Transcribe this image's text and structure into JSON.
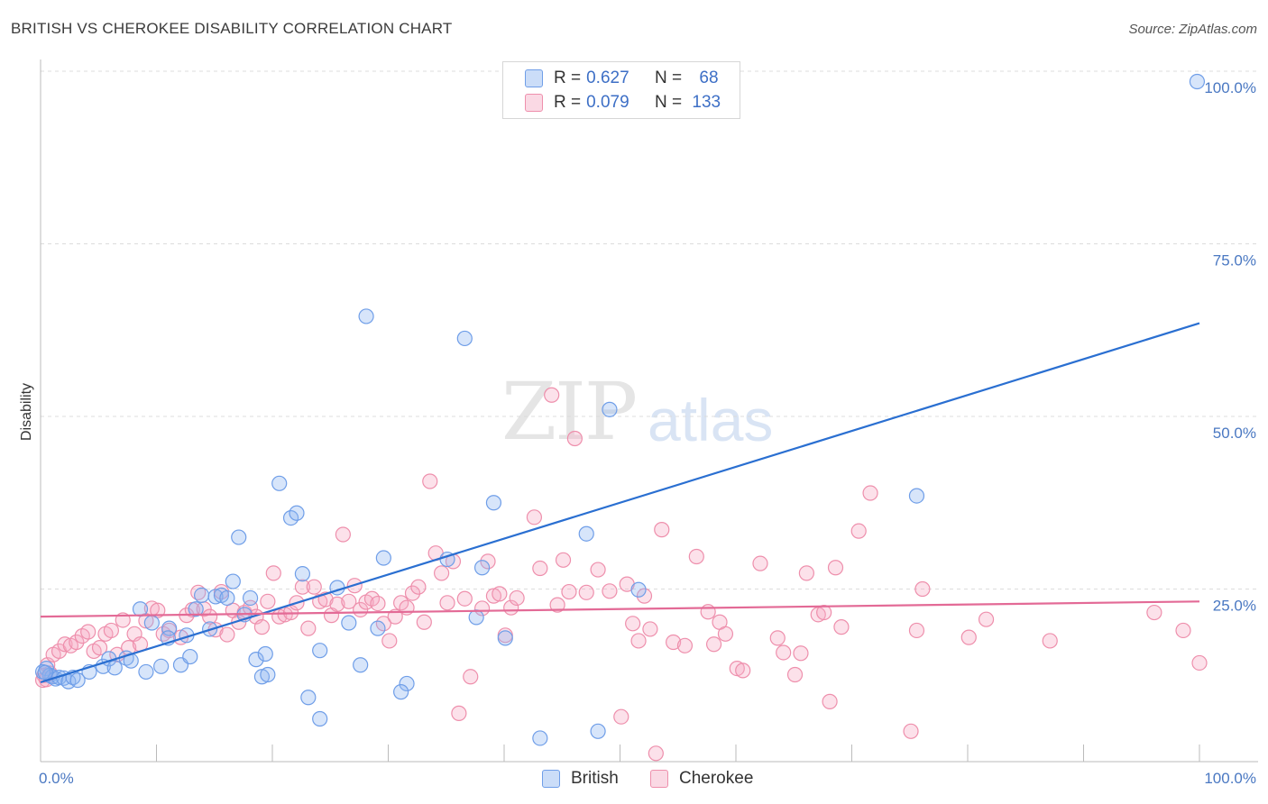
{
  "title": "BRITISH VS CHEROKEE DISABILITY CORRELATION CHART",
  "source": "Source: ZipAtlas.com",
  "watermark": {
    "zip": "ZIP",
    "atlas": "atlas"
  },
  "colors": {
    "british": "#6f9ee8",
    "british_fill": "rgba(140,180,240,0.35)",
    "british_line": "#2a6fd1",
    "cherokee": "#ee8fac",
    "cherokee_fill": "rgba(245,170,195,0.35)",
    "cherokee_line": "#e36a96",
    "tick_text": "#4a78c2"
  },
  "legend": {
    "british": {
      "r_label": "R =",
      "r_value": "0.627",
      "n_label": "N =",
      "n_value": "68"
    },
    "cherokee": {
      "r_label": "R =",
      "r_value": "0.079",
      "n_label": "N =",
      "n_value": "133"
    }
  },
  "bottom_legend": {
    "british": "British",
    "cherokee": "Cherokee"
  },
  "chart_data": {
    "type": "scatter",
    "title": "BRITISH VS CHEROKEE DISABILITY CORRELATION CHART",
    "xlabel": "",
    "ylabel": "Disability",
    "xlim": [
      0,
      100
    ],
    "ylim": [
      0,
      105
    ],
    "x_tick_labels": [
      "0.0%",
      "100.0%"
    ],
    "y_ticks": [
      25,
      50,
      75,
      100
    ],
    "y_tick_labels": [
      "25.0%",
      "50.0%",
      "75.0%",
      "100.0%"
    ],
    "grid": true,
    "legend_position": "top-center",
    "series": [
      {
        "name": "British",
        "trend": {
          "x": [
            0,
            100
          ],
          "y": [
            11.5,
            63.5
          ]
        },
        "points": [
          [
            0.5,
            13.5
          ],
          [
            0.8,
            12.5
          ],
          [
            1.0,
            12.3
          ],
          [
            1.3,
            12.0
          ],
          [
            1.6,
            12.2
          ],
          [
            2.0,
            12.1
          ],
          [
            2.4,
            11.6
          ],
          [
            2.8,
            12.2
          ],
          [
            3.2,
            11.8
          ],
          [
            4.2,
            13.0
          ],
          [
            5.4,
            13.8
          ],
          [
            5.9,
            14.9
          ],
          [
            6.4,
            13.6
          ],
          [
            7.4,
            15.0
          ],
          [
            7.8,
            14.6
          ],
          [
            8.6,
            22.1
          ],
          [
            9.1,
            13.0
          ],
          [
            9.6,
            20.1
          ],
          [
            10.4,
            13.8
          ],
          [
            11.1,
            19.3
          ],
          [
            11.0,
            17.9
          ],
          [
            12.1,
            14.0
          ],
          [
            12.6,
            18.3
          ],
          [
            12.9,
            15.2
          ],
          [
            13.4,
            22.1
          ],
          [
            13.9,
            24.1
          ],
          [
            14.6,
            19.2
          ],
          [
            15.1,
            23.9
          ],
          [
            15.6,
            24.1
          ],
          [
            16.1,
            23.7
          ],
          [
            16.6,
            26.1
          ],
          [
            17.1,
            32.5
          ],
          [
            17.6,
            21.3
          ],
          [
            18.1,
            23.7
          ],
          [
            18.6,
            14.8
          ],
          [
            19.1,
            12.3
          ],
          [
            19.4,
            15.6
          ],
          [
            19.6,
            12.6
          ],
          [
            20.6,
            40.3
          ],
          [
            21.6,
            35.3
          ],
          [
            22.1,
            36.0
          ],
          [
            22.6,
            27.2
          ],
          [
            23.1,
            9.3
          ],
          [
            24.1,
            16.1
          ],
          [
            24.1,
            6.2
          ],
          [
            25.6,
            25.2
          ],
          [
            26.6,
            20.1
          ],
          [
            27.6,
            14.0
          ],
          [
            28.1,
            64.5
          ],
          [
            29.1,
            19.3
          ],
          [
            29.6,
            29.5
          ],
          [
            31.6,
            11.3
          ],
          [
            31.1,
            10.1
          ],
          [
            35.1,
            29.3
          ],
          [
            36.6,
            61.3
          ],
          [
            37.6,
            20.9
          ],
          [
            38.1,
            28.1
          ],
          [
            39.1,
            37.5
          ],
          [
            40.1,
            17.9
          ],
          [
            43.1,
            3.4
          ],
          [
            47.1,
            33.0
          ],
          [
            48.1,
            4.4
          ],
          [
            49.1,
            51.0
          ],
          [
            51.6,
            24.9
          ],
          [
            75.6,
            38.5
          ],
          [
            99.8,
            98.5
          ],
          [
            0.2,
            13.0
          ],
          [
            0.4,
            12.9
          ]
        ]
      },
      {
        "name": "Cherokee",
        "trend": {
          "x": [
            0,
            100
          ],
          "y": [
            21.0,
            23.2
          ]
        },
        "points": [
          [
            0.3,
            12.5
          ],
          [
            0.6,
            14.0
          ],
          [
            1.1,
            15.5
          ],
          [
            1.6,
            16.0
          ],
          [
            2.1,
            17.0
          ],
          [
            2.6,
            16.8
          ],
          [
            3.1,
            17.3
          ],
          [
            3.6,
            18.2
          ],
          [
            4.1,
            18.8
          ],
          [
            4.6,
            16.0
          ],
          [
            5.1,
            16.5
          ],
          [
            5.6,
            18.5
          ],
          [
            6.1,
            19.0
          ],
          [
            6.6,
            15.5
          ],
          [
            7.1,
            20.5
          ],
          [
            7.6,
            16.5
          ],
          [
            8.1,
            18.5
          ],
          [
            8.6,
            17.0
          ],
          [
            9.1,
            20.4
          ],
          [
            9.6,
            22.2
          ],
          [
            10.1,
            21.9
          ],
          [
            10.6,
            18.5
          ],
          [
            11.1,
            19.0
          ],
          [
            12.1,
            18.0
          ],
          [
            12.6,
            21.2
          ],
          [
            13.1,
            22.0
          ],
          [
            13.6,
            24.5
          ],
          [
            14.1,
            22.1
          ],
          [
            14.6,
            21.0
          ],
          [
            15.1,
            19.1
          ],
          [
            15.6,
            24.6
          ],
          [
            16.1,
            18.4
          ],
          [
            16.6,
            21.9
          ],
          [
            17.1,
            20.2
          ],
          [
            17.6,
            21.6
          ],
          [
            18.1,
            22.3
          ],
          [
            18.6,
            21.0
          ],
          [
            19.1,
            19.5
          ],
          [
            19.6,
            23.2
          ],
          [
            20.1,
            27.3
          ],
          [
            20.6,
            21.0
          ],
          [
            21.1,
            21.3
          ],
          [
            21.6,
            21.6
          ],
          [
            22.1,
            23.0
          ],
          [
            22.6,
            25.3
          ],
          [
            23.1,
            19.3
          ],
          [
            23.6,
            25.3
          ],
          [
            24.1,
            23.2
          ],
          [
            24.6,
            23.5
          ],
          [
            25.1,
            21.2
          ],
          [
            25.6,
            22.8
          ],
          [
            26.1,
            32.9
          ],
          [
            26.6,
            23.2
          ],
          [
            27.1,
            25.5
          ],
          [
            27.6,
            22.0
          ],
          [
            28.1,
            23.1
          ],
          [
            28.6,
            23.6
          ],
          [
            29.1,
            22.9
          ],
          [
            29.6,
            20.0
          ],
          [
            30.1,
            17.5
          ],
          [
            30.6,
            21.0
          ],
          [
            31.1,
            23.0
          ],
          [
            31.6,
            22.3
          ],
          [
            32.1,
            24.4
          ],
          [
            32.6,
            25.3
          ],
          [
            33.1,
            20.2
          ],
          [
            33.6,
            40.6
          ],
          [
            34.1,
            30.2
          ],
          [
            34.6,
            27.3
          ],
          [
            35.1,
            23.0
          ],
          [
            35.6,
            29.0
          ],
          [
            36.1,
            7.0
          ],
          [
            36.6,
            23.6
          ],
          [
            37.1,
            12.3
          ],
          [
            38.1,
            22.2
          ],
          [
            38.6,
            29.0
          ],
          [
            39.1,
            24.0
          ],
          [
            39.6,
            24.3
          ],
          [
            40.1,
            18.3
          ],
          [
            40.6,
            22.3
          ],
          [
            41.1,
            23.7
          ],
          [
            42.6,
            35.4
          ],
          [
            43.1,
            28.0
          ],
          [
            44.1,
            53.1
          ],
          [
            44.6,
            22.7
          ],
          [
            45.1,
            29.2
          ],
          [
            45.6,
            24.6
          ],
          [
            46.1,
            46.8
          ],
          [
            47.1,
            24.5
          ],
          [
            48.1,
            27.8
          ],
          [
            49.1,
            24.7
          ],
          [
            50.1,
            6.5
          ],
          [
            50.6,
            25.7
          ],
          [
            51.1,
            20.0
          ],
          [
            51.6,
            17.5
          ],
          [
            52.1,
            24.0
          ],
          [
            52.6,
            19.2
          ],
          [
            53.1,
            1.2
          ],
          [
            53.6,
            33.6
          ],
          [
            54.6,
            17.3
          ],
          [
            55.6,
            16.8
          ],
          [
            56.6,
            29.7
          ],
          [
            57.6,
            21.7
          ],
          [
            58.1,
            17.0
          ],
          [
            58.6,
            20.2
          ],
          [
            59.1,
            18.5
          ],
          [
            60.1,
            13.5
          ],
          [
            60.6,
            13.2
          ],
          [
            62.1,
            28.7
          ],
          [
            63.6,
            17.9
          ],
          [
            64.1,
            15.8
          ],
          [
            65.1,
            12.6
          ],
          [
            65.6,
            15.7
          ],
          [
            66.1,
            27.3
          ],
          [
            67.1,
            21.3
          ],
          [
            67.6,
            21.6
          ],
          [
            68.1,
            8.7
          ],
          [
            68.6,
            28.1
          ],
          [
            69.1,
            19.5
          ],
          [
            70.6,
            33.4
          ],
          [
            71.6,
            38.9
          ],
          [
            75.1,
            4.4
          ],
          [
            75.6,
            19.0
          ],
          [
            76.1,
            25.0
          ],
          [
            80.1,
            18.0
          ],
          [
            81.6,
            20.6
          ],
          [
            87.1,
            17.5
          ],
          [
            96.1,
            21.6
          ],
          [
            98.6,
            19.0
          ],
          [
            100.0,
            14.3
          ],
          [
            0.2,
            11.8
          ],
          [
            0.5,
            11.9
          ],
          [
            0.8,
            12.8
          ]
        ]
      }
    ]
  }
}
